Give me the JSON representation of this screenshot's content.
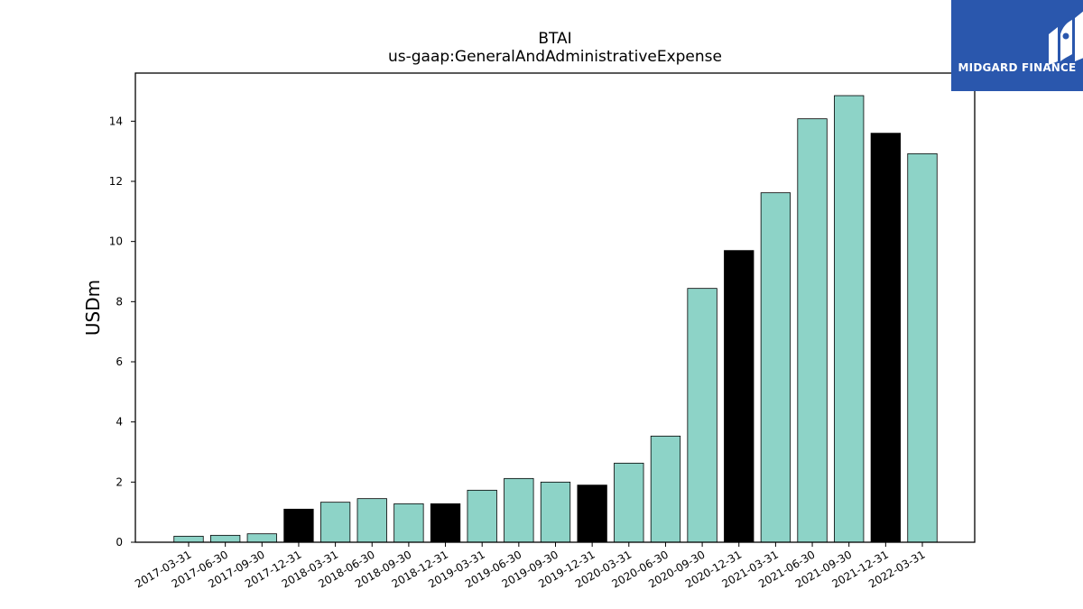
{
  "brand": {
    "name": "MIDGARD FINANCE",
    "bg_color": "#2a57ad",
    "icon": "midgard-logo-icon"
  },
  "chart_data": {
    "type": "bar",
    "title": "BTAI",
    "subtitle": "us-gaap:GeneralAndAdministrativeExpense",
    "xlabel": "",
    "ylabel": "USDm",
    "ylim": [
      0,
      15.6
    ],
    "yticks": [
      0,
      2,
      4,
      6,
      8,
      10,
      12,
      14
    ],
    "grid": false,
    "categories": [
      "2017-03-31",
      "2017-06-30",
      "2017-09-30",
      "2017-12-31",
      "2018-03-31",
      "2018-06-30",
      "2018-09-30",
      "2018-12-31",
      "2019-03-31",
      "2019-06-30",
      "2019-09-30",
      "2019-12-31",
      "2020-03-31",
      "2020-06-30",
      "2020-09-30",
      "2020-12-31",
      "2021-03-31",
      "2021-06-30",
      "2021-09-30",
      "2021-12-31",
      "2022-03-31"
    ],
    "values": [
      0.2,
      0.23,
      0.28,
      1.1,
      1.33,
      1.45,
      1.28,
      1.28,
      1.73,
      2.12,
      2.0,
      1.9,
      2.63,
      3.53,
      8.44,
      9.7,
      11.62,
      14.08,
      14.85,
      13.6,
      12.92
    ],
    "colors": {
      "quarter": "#8dd3c7",
      "year_end": "#000000",
      "edge": "#000000"
    },
    "year_end_categories": [
      "2017-12-31",
      "2018-12-31",
      "2019-12-31",
      "2020-12-31",
      "2021-12-31"
    ]
  }
}
